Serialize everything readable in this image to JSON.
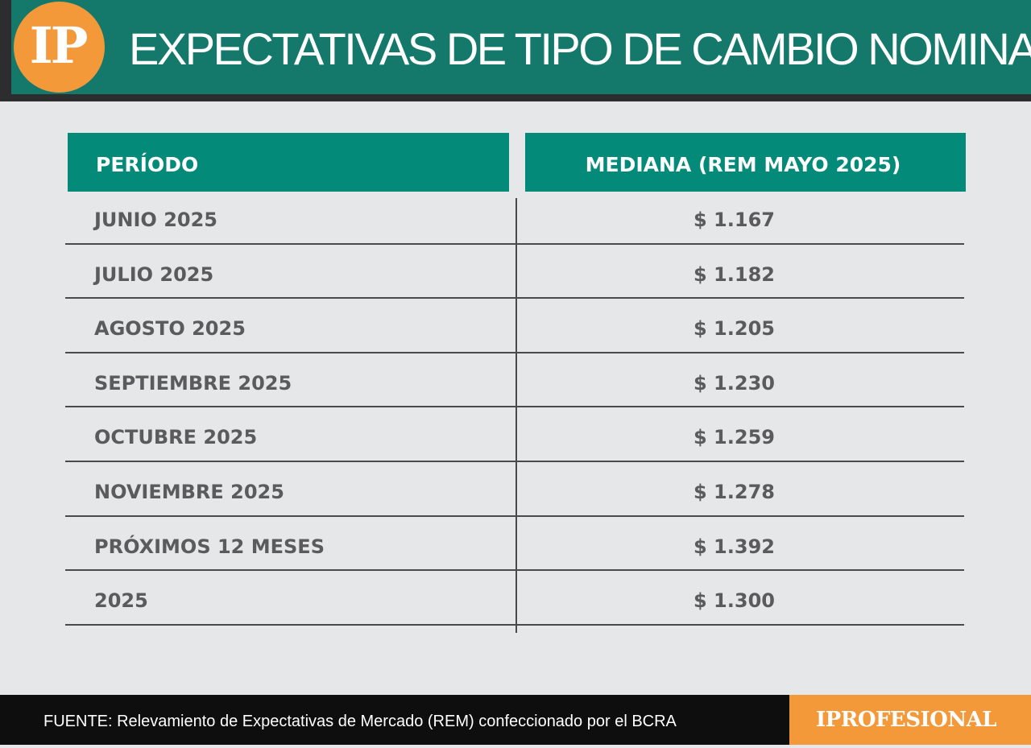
{
  "header": {
    "logo_text": "IP",
    "title": "EXPECTATIVAS DE TIPO DE CAMBIO NOMINAL"
  },
  "chart_data": {
    "type": "table",
    "columns": [
      "PERÍODO",
      "MEDIANA (REM MAYO 2025)"
    ],
    "rows": [
      {
        "period": "JUNIO 2025",
        "value": "$ 1.167"
      },
      {
        "period": "JULIO 2025",
        "value": "$ 1.182"
      },
      {
        "period": "AGOSTO 2025",
        "value": "$ 1.205"
      },
      {
        "period": "SEPTIEMBRE 2025",
        "value": "$ 1.230"
      },
      {
        "period": "OCTUBRE 2025",
        "value": "$ 1.259"
      },
      {
        "period": "NOVIEMBRE 2025",
        "value": "$ 1.278"
      },
      {
        "period": "PRÓXIMOS 12 MESES",
        "value": "$ 1.392"
      },
      {
        "period": "2025",
        "value": "$ 1.300"
      }
    ]
  },
  "footer": {
    "source": "FUENTE: Relevamiento de Expectativas de Mercado (REM) confeccionado por el BCRA",
    "brand": "IPROFESIONAL"
  },
  "colors": {
    "header_green": "#14796a",
    "table_header_teal": "#038a79",
    "accent_orange": "#f3993a",
    "background_gray": "#e6e7e8",
    "text_gray": "#5b5b5e"
  }
}
